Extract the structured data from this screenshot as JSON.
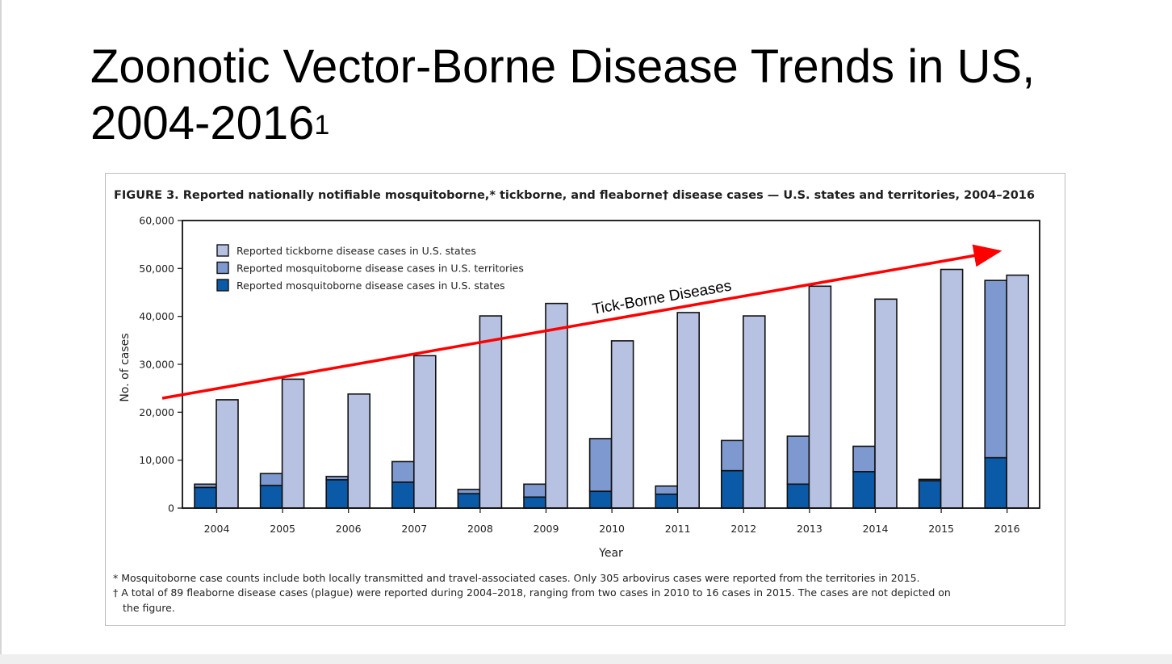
{
  "slide": {
    "title": "Zoonotic Vector-Borne Disease Trends in US, 2004-2016",
    "title_line1": "Zoonotic Vector-Borne Disease Trends in US,",
    "title_line2": "2004-2016",
    "title_superscript": "1"
  },
  "colors": {
    "tick_states": "#b7c1e2",
    "mosq_territories": "#7e99cf",
    "mosq_states": "#0a5aa8",
    "arrow": "#ff0000",
    "outline": "#111111"
  },
  "chart_data": {
    "type": "bar",
    "title": "FIGURE 3. Reported nationally notifiable mosquitoborne,* tickborne, and fleaborne† disease cases — U.S. states and territories, 2004–2016",
    "xlabel": "Year",
    "ylabel": "No. of cases",
    "ylim": [
      0,
      60000
    ],
    "yticks": [
      0,
      10000,
      20000,
      30000,
      40000,
      50000,
      60000
    ],
    "ytick_labels": [
      "0",
      "10,000",
      "20,000",
      "30,000",
      "40,000",
      "50,000",
      "60,000"
    ],
    "categories": [
      "2004",
      "2005",
      "2006",
      "2007",
      "2008",
      "2009",
      "2010",
      "2011",
      "2012",
      "2013",
      "2014",
      "2015",
      "2016"
    ],
    "series": [
      {
        "name": "Reported tickborne disease cases in U.S. states",
        "stack": "tickborne",
        "color": "#b7c1e2",
        "values": [
          22600,
          26900,
          23800,
          31800,
          40100,
          42700,
          34900,
          40800,
          40100,
          46300,
          43600,
          49800,
          48600
        ]
      },
      {
        "name": "Reported mosquitoborne disease cases in U.S. territories",
        "stack": "mosquitoborne",
        "color": "#7e99cf",
        "values": [
          700,
          2500,
          700,
          4300,
          900,
          2700,
          11000,
          1700,
          6300,
          10000,
          5300,
          300,
          37000
        ]
      },
      {
        "name": "Reported mosquitoborne disease cases in U.S. states",
        "stack": "mosquitoborne",
        "color": "#0a5aa8",
        "values": [
          4300,
          4700,
          5900,
          5400,
          3000,
          2300,
          3500,
          2900,
          7800,
          5000,
          7600,
          5700,
          10500
        ]
      }
    ],
    "legend": {
      "position": "top-left",
      "order": [
        0,
        1,
        2
      ]
    },
    "annotation": {
      "text": "Tick-Borne Diseases",
      "type": "trend-arrow"
    },
    "footnotes": [
      "* Mosquitoborne case counts include both locally transmitted and travel-associated cases. Only 305 arbovirus cases were reported from the territories in 2015.",
      "† A total of 89 fleaborne disease cases (plague) were reported during 2004–2018, ranging from two cases in 2010 to 16 cases in 2015. The cases are not depicted on",
      "the figure."
    ]
  }
}
